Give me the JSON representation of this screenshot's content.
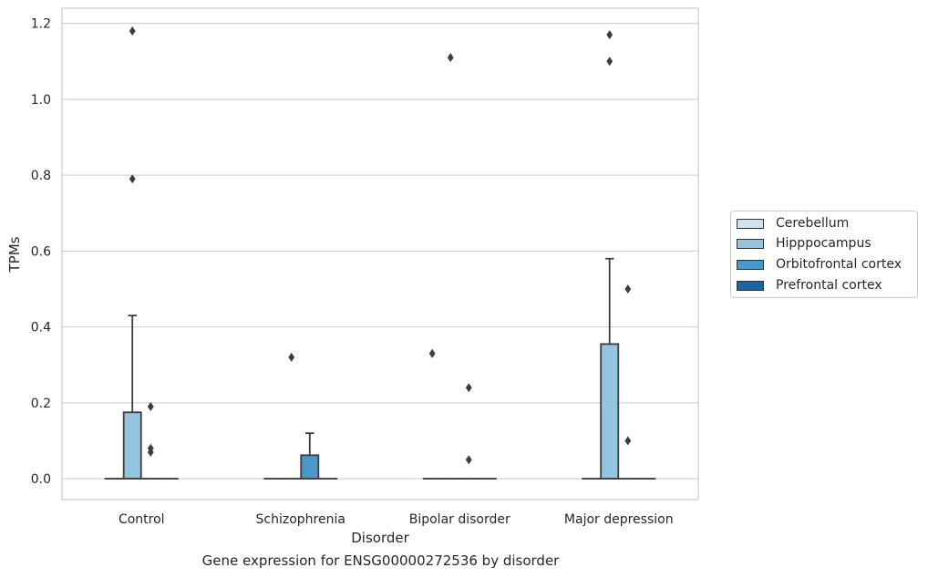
{
  "chart_data": {
    "type": "box",
    "title": "",
    "xlabel": "Disorder",
    "ylabel": "TPMs",
    "caption": "Gene expression for ENSG00000272536 by disorder",
    "categories": [
      "Control",
      "Schizophrenia",
      "Bipolar disorder",
      "Major depression"
    ],
    "ylim": [
      -0.055,
      1.24
    ],
    "yticks": [
      0.0,
      0.2,
      0.4,
      0.6,
      0.8,
      1.0,
      1.2
    ],
    "ytick_labels": [
      "0.0",
      "0.2",
      "0.4",
      "0.6",
      "0.8",
      "1.0",
      "1.2"
    ],
    "grid": true,
    "legend_position": "right",
    "series": [
      {
        "name": "Cerebellum",
        "color": "#d0e1f2",
        "boxes": [
          {
            "q1": 0,
            "median": 0,
            "q3": 0,
            "whislo": 0,
            "whishi": 0,
            "fliers": []
          },
          {
            "q1": 0,
            "median": 0,
            "q3": 0,
            "whislo": 0,
            "whishi": 0,
            "fliers": []
          },
          {
            "q1": 0,
            "median": 0,
            "q3": 0,
            "whislo": 0,
            "whishi": 0,
            "fliers": [
              0.33
            ]
          },
          {
            "q1": 0,
            "median": 0,
            "q3": 0,
            "whislo": 0,
            "whishi": 0,
            "fliers": []
          }
        ]
      },
      {
        "name": "Hipppocampus",
        "color": "#94c4df",
        "boxes": [
          {
            "q1": 0,
            "median": 0,
            "q3": 0.175,
            "whislo": 0,
            "whishi": 0.43,
            "fliers": [
              0.79,
              1.18
            ]
          },
          {
            "q1": 0,
            "median": 0,
            "q3": 0,
            "whislo": 0,
            "whishi": 0,
            "fliers": [
              0.32
            ]
          },
          {
            "q1": 0,
            "median": 0,
            "q3": 0,
            "whislo": 0,
            "whishi": 0,
            "fliers": [
              1.11
            ]
          },
          {
            "q1": 0,
            "median": 0,
            "q3": 0.355,
            "whislo": 0,
            "whishi": 0.58,
            "fliers": [
              1.1,
              1.17
            ]
          }
        ]
      },
      {
        "name": "Orbitofrontal cortex",
        "color": "#4a98c9",
        "boxes": [
          {
            "q1": 0,
            "median": 0,
            "q3": 0,
            "whislo": 0,
            "whishi": 0,
            "fliers": [
              0.07,
              0.08,
              0.19
            ]
          },
          {
            "q1": 0,
            "median": 0,
            "q3": 0.062,
            "whislo": 0,
            "whishi": 0.12,
            "fliers": []
          },
          {
            "q1": 0,
            "median": 0,
            "q3": 0,
            "whislo": 0,
            "whishi": 0,
            "fliers": [
              0.05,
              0.24
            ]
          },
          {
            "q1": 0,
            "median": 0,
            "q3": 0,
            "whislo": 0,
            "whishi": 0,
            "fliers": [
              0.1,
              0.5
            ]
          }
        ]
      },
      {
        "name": "Prefrontal cortex",
        "color": "#1764ab",
        "boxes": [
          {
            "q1": 0,
            "median": 0,
            "q3": 0,
            "whislo": 0,
            "whishi": 0,
            "fliers": []
          },
          {
            "q1": 0,
            "median": 0,
            "q3": 0,
            "whislo": 0,
            "whishi": 0,
            "fliers": []
          },
          {
            "q1": 0,
            "median": 0,
            "q3": 0,
            "whislo": 0,
            "whishi": 0,
            "fliers": []
          },
          {
            "q1": 0,
            "median": 0,
            "q3": 0,
            "whislo": 0,
            "whishi": 0,
            "fliers": []
          }
        ]
      }
    ]
  },
  "legend": {
    "items": [
      {
        "label": "Cerebellum",
        "color": "#d0e1f2"
      },
      {
        "label": "Hipppocampus",
        "color": "#94c4df"
      },
      {
        "label": "Orbitofrontal cortex",
        "color": "#4a98c9"
      },
      {
        "label": "Prefrontal cortex",
        "color": "#1764ab"
      }
    ]
  }
}
